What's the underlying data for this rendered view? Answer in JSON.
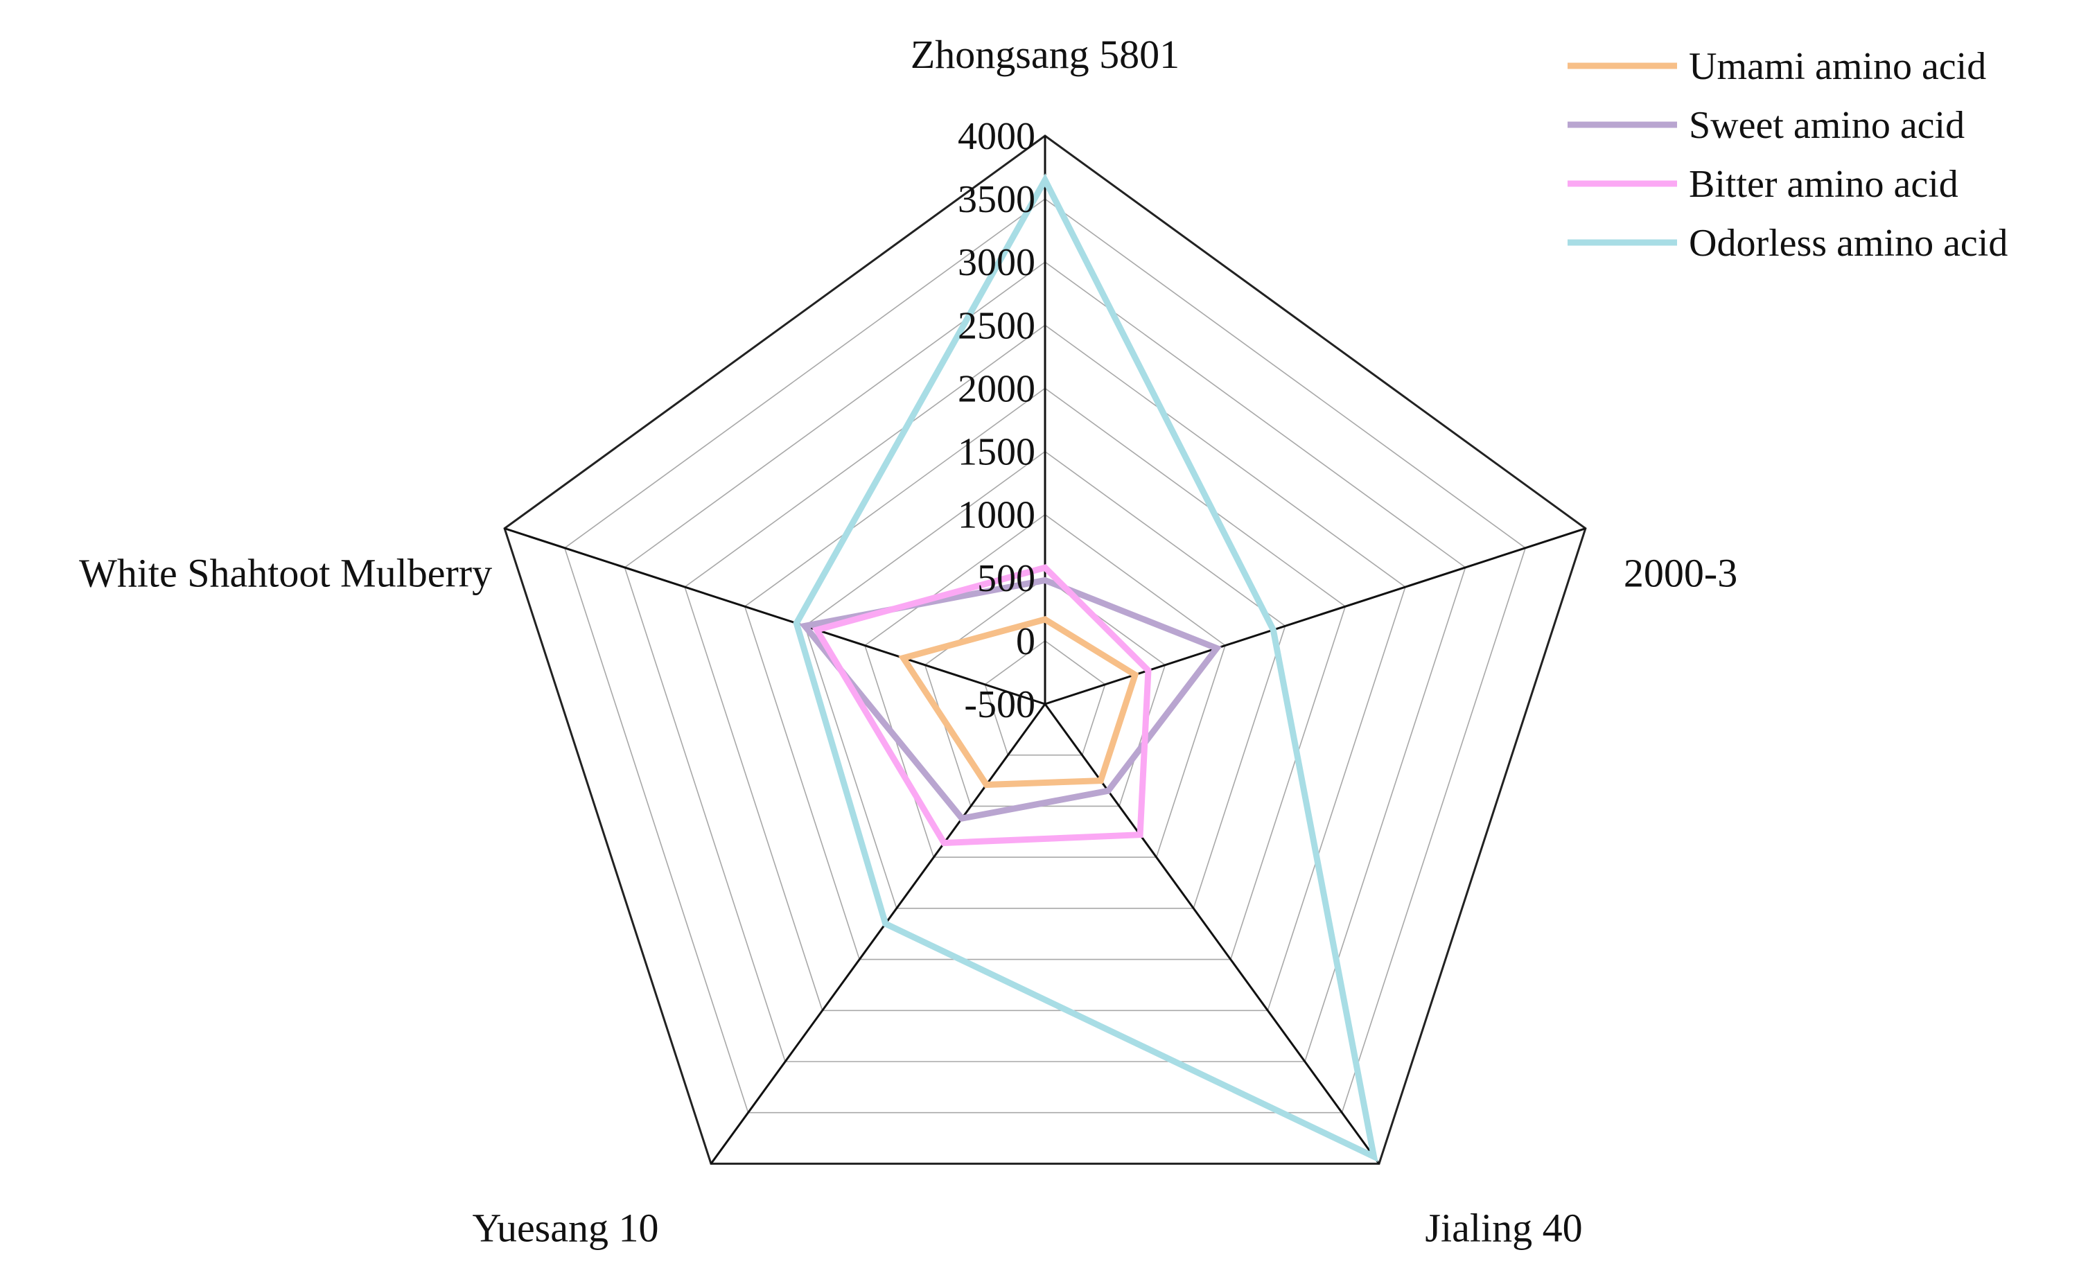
{
  "chart_data": {
    "type": "radar",
    "title": "",
    "categories": [
      "Zhongsang 5801",
      "2000-3",
      "Jialing 40",
      "Yuesang 10",
      "White Shahtoot Mulberry"
    ],
    "scale": {
      "min": -500,
      "max": 4000,
      "step": 500
    },
    "ticks": [
      "-500",
      "0",
      "500",
      "1000",
      "1500",
      "2000",
      "2500",
      "3000",
      "3500",
      "4000"
    ],
    "legend_position": "top-right",
    "series": [
      {
        "name": "Umami amino acid",
        "color": "#f7bf88",
        "values": [
          170,
          250,
          250,
          290,
          680
        ]
      },
      {
        "name": "Sweet amino acid",
        "color": "#b9a5d0",
        "values": [
          480,
          930,
          350,
          620,
          1500
        ]
      },
      {
        "name": "Bitter amino acid",
        "color": "#fba8f4",
        "values": [
          580,
          360,
          780,
          860,
          1400
        ]
      },
      {
        "name": "Odorless amino acid",
        "color": "#a8dde5",
        "values": [
          3650,
          1400,
          3930,
          1650,
          1570
        ]
      }
    ]
  }
}
